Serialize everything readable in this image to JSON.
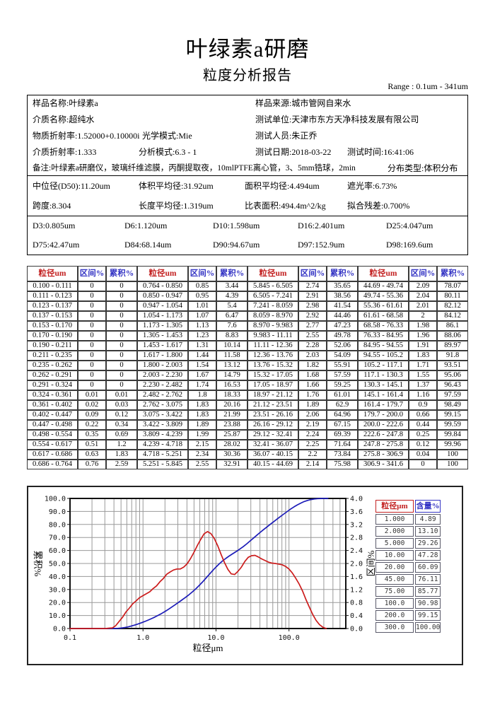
{
  "page": {
    "title": "叶绿素a研磨",
    "subtitle": "粒度分析报告",
    "range_note": "Range : 0.1um - 341um",
    "accent_colors": {
      "red": "#c32222",
      "blue": "#3434c4"
    }
  },
  "info": {
    "sample_name": "样品名称:叶绿素a",
    "sample_source": "样品来源:城市管网自来水",
    "medium_name": "介质名称:超纯水",
    "test_org": "测试单位:天津市东方天净科技发展有限公司",
    "material_ri": "物质折射率:1.52000+0.10000i",
    "optical_model": "光学模式:Mie",
    "tester": "测试人员:朱正乔",
    "medium_ri": "介质折射率:1.333",
    "analysis_mode": "分析模式:6.3 - 1",
    "test_date": "测试日期:2018-03-22",
    "test_time": "测试时间:16:41:06",
    "remark": "备注:叶绿素a研磨仪，玻璃纤维滤膜，丙酮提取夜，10mlPTFE离心管，3、5mm锆球，2min",
    "dist_type": "分布类型:体积分布"
  },
  "stats": {
    "d50": "中位径(D50):11.20um",
    "vol_mean": "体积平均径:31.92um",
    "area_mean": "面积平均径:4.494um",
    "obscuration": "遮光率:6.73%",
    "span": "跨度:8.304",
    "length_mean": "长度平均径:1.319um",
    "ssa": "比表面积:494.4m^2/kg",
    "residual": "拟合残差:0.700%"
  },
  "dvalues": {
    "row1": [
      "D3:0.805um",
      "D6:1.120um",
      "D10:1.598um",
      "D16:2.401um",
      "D25:4.047um"
    ],
    "row2": [
      "D75:42.47um",
      "D84:68.14um",
      "D90:94.67um",
      "D97:152.9um",
      "D98:169.6um"
    ]
  },
  "table": {
    "headers": [
      "粒径um",
      "区间%",
      "累积%"
    ],
    "groups": [
      [
        [
          "0.100 - 0.111",
          "0",
          "0"
        ],
        [
          "0.111 - 0.123",
          "0",
          "0"
        ],
        [
          "0.123 - 0.137",
          "0",
          "0"
        ],
        [
          "0.137 - 0.153",
          "0",
          "0"
        ],
        [
          "0.153 - 0.170",
          "0",
          "0"
        ],
        [
          "0.170 - 0.190",
          "0",
          "0"
        ],
        [
          "0.190 - 0.211",
          "0",
          "0"
        ],
        [
          "0.211 - 0.235",
          "0",
          "0"
        ],
        [
          "0.235 - 0.262",
          "0",
          "0"
        ],
        [
          "0.262 - 0.291",
          "0",
          "0"
        ],
        [
          "0.291 - 0.324",
          "0",
          "0"
        ],
        [
          "0.324 - 0.361",
          "0.01",
          "0.01"
        ],
        [
          "0.361 - 0.402",
          "0.02",
          "0.03"
        ],
        [
          "0.402 - 0.447",
          "0.09",
          "0.12"
        ],
        [
          "0.447 - 0.498",
          "0.22",
          "0.34"
        ],
        [
          "0.498 - 0.554",
          "0.35",
          "0.69"
        ],
        [
          "0.554 - 0.617",
          "0.51",
          "1.2"
        ],
        [
          "0.617 - 0.686",
          "0.63",
          "1.83"
        ],
        [
          "0.686 - 0.764",
          "0.76",
          "2.59"
        ]
      ],
      [
        [
          "0.764 - 0.850",
          "0.85",
          "3.44"
        ],
        [
          "0.850 - 0.947",
          "0.95",
          "4.39"
        ],
        [
          "0.947 - 1.054",
          "1.01",
          "5.4"
        ],
        [
          "1.054 - 1.173",
          "1.07",
          "6.47"
        ],
        [
          "1.173 - 1.305",
          "1.13",
          "7.6"
        ],
        [
          "1.305 - 1.453",
          "1.23",
          "8.83"
        ],
        [
          "1.453 - 1.617",
          "1.31",
          "10.14"
        ],
        [
          "1.617 - 1.800",
          "1.44",
          "11.58"
        ],
        [
          "1.800 - 2.003",
          "1.54",
          "13.12"
        ],
        [
          "2.003 - 2.230",
          "1.67",
          "14.79"
        ],
        [
          "2.230 - 2.482",
          "1.74",
          "16.53"
        ],
        [
          "2.482 - 2.762",
          "1.8",
          "18.33"
        ],
        [
          "2.762 - 3.075",
          "1.83",
          "20.16"
        ],
        [
          "3.075 - 3.422",
          "1.83",
          "21.99"
        ],
        [
          "3.422 - 3.809",
          "1.89",
          "23.88"
        ],
        [
          "3.809 - 4.239",
          "1.99",
          "25.87"
        ],
        [
          "4.239 - 4.718",
          "2.15",
          "28.02"
        ],
        [
          "4.718 - 5.251",
          "2.34",
          "30.36"
        ],
        [
          "5.251 - 5.845",
          "2.55",
          "32.91"
        ]
      ],
      [
        [
          "5.845 - 6.505",
          "2.74",
          "35.65"
        ],
        [
          "6.505 - 7.241",
          "2.91",
          "38.56"
        ],
        [
          "7.241 - 8.059",
          "2.98",
          "41.54"
        ],
        [
          "8.059 - 8.970",
          "2.92",
          "44.46"
        ],
        [
          "8.970 - 9.983",
          "2.77",
          "47.23"
        ],
        [
          "9.983 - 11.11",
          "2.55",
          "49.78"
        ],
        [
          "11.11 - 12.36",
          "2.28",
          "52.06"
        ],
        [
          "12.36 - 13.76",
          "2.03",
          "54.09"
        ],
        [
          "13.76 - 15.32",
          "1.82",
          "55.91"
        ],
        [
          "15.32 - 17.05",
          "1.68",
          "57.59"
        ],
        [
          "17.05 - 18.97",
          "1.66",
          "59.25"
        ],
        [
          "18.97 - 21.12",
          "1.76",
          "61.01"
        ],
        [
          "21.12 - 23.51",
          "1.89",
          "62.9"
        ],
        [
          "23.51 - 26.16",
          "2.06",
          "64.96"
        ],
        [
          "26.16 - 29.12",
          "2.19",
          "67.15"
        ],
        [
          "29.12 - 32.41",
          "2.24",
          "69.39"
        ],
        [
          "32.41 - 36.07",
          "2.25",
          "71.64"
        ],
        [
          "36.07 - 40.15",
          "2.2",
          "73.84"
        ],
        [
          "40.15 - 44.69",
          "2.14",
          "75.98"
        ]
      ],
      [
        [
          "44.69 - 49.74",
          "2.09",
          "78.07"
        ],
        [
          "49.74 - 55.36",
          "2.04",
          "80.11"
        ],
        [
          "55.36 - 61.61",
          "2.01",
          "82.12"
        ],
        [
          "61.61 - 68.58",
          "2",
          "84.12"
        ],
        [
          "68.58 - 76.33",
          "1.98",
          "86.1"
        ],
        [
          "76.33 - 84.95",
          "1.96",
          "88.06"
        ],
        [
          "84.95 - 94.55",
          "1.91",
          "89.97"
        ],
        [
          "94.55 - 105.2",
          "1.83",
          "91.8"
        ],
        [
          "105.2 - 117.1",
          "1.71",
          "93.51"
        ],
        [
          "117.1 - 130.3",
          "1.55",
          "95.06"
        ],
        [
          "130.3 - 145.1",
          "1.37",
          "96.43"
        ],
        [
          "145.1 - 161.4",
          "1.16",
          "97.59"
        ],
        [
          "161.4 - 179.7",
          "0.9",
          "98.49"
        ],
        [
          "179.7 - 200.0",
          "0.66",
          "99.15"
        ],
        [
          "200.0 - 222.6",
          "0.44",
          "99.59"
        ],
        [
          "222.6 - 247.8",
          "0.25",
          "99.84"
        ],
        [
          "247.8 - 275.8",
          "0.12",
          "99.96"
        ],
        [
          "275.8 - 306.9",
          "0.04",
          "100"
        ],
        [
          "306.9 - 341.6",
          "0",
          "100"
        ]
      ]
    ]
  },
  "side_table": {
    "headers": [
      "粒径μm",
      "含量%"
    ],
    "rows": [
      [
        "1.000",
        "4.89"
      ],
      [
        "2.000",
        "13.10"
      ],
      [
        "5.000",
        "29.26"
      ],
      [
        "10.00",
        "47.28"
      ],
      [
        "20.00",
        "60.09"
      ],
      [
        "45.00",
        "76.11"
      ],
      [
        "75.00",
        "85.77"
      ],
      [
        "100.0",
        "90.98"
      ],
      [
        "200.0",
        "99.15"
      ],
      [
        "300.0",
        "100.00"
      ]
    ]
  },
  "chart_data": {
    "type": "line",
    "x_axis": {
      "label": "粒径μm",
      "scale": "log",
      "plot_min": 0.1,
      "plot_max": 600,
      "tick_values": [
        0.1,
        1,
        10,
        100
      ],
      "tick_labels": [
        "0.1",
        "1.0",
        "10.0",
        "100.0"
      ]
    },
    "y_left_axis": {
      "label": "累积%",
      "min": 0,
      "max": 100,
      "step": 10
    },
    "y_right_axis": {
      "label": "区间%",
      "min": 0,
      "max": 4.0,
      "step": 0.4
    },
    "grid": true,
    "colors": {
      "cumulative": "#1c1cb8",
      "interval": "#cc1c1c"
    },
    "bin_edges": [
      0.1,
      0.111,
      0.123,
      0.137,
      0.153,
      0.17,
      0.19,
      0.211,
      0.235,
      0.262,
      0.291,
      0.324,
      0.361,
      0.402,
      0.447,
      0.498,
      0.554,
      0.617,
      0.686,
      0.764,
      0.85,
      0.947,
      1.054,
      1.173,
      1.305,
      1.453,
      1.617,
      1.8,
      2.003,
      2.23,
      2.482,
      2.762,
      3.075,
      3.422,
      3.809,
      4.239,
      4.718,
      5.251,
      5.845,
      6.505,
      7.241,
      8.059,
      8.97,
      9.983,
      11.11,
      12.36,
      13.76,
      15.32,
      17.05,
      18.97,
      21.12,
      23.51,
      26.16,
      29.12,
      32.41,
      36.07,
      40.15,
      44.69,
      49.74,
      55.36,
      61.61,
      68.58,
      76.33,
      84.95,
      94.55,
      105.2,
      117.1,
      130.3,
      145.1,
      161.4,
      179.7,
      200.0,
      222.6,
      247.8,
      275.8,
      306.9,
      341.6
    ],
    "series": [
      {
        "name": "累积%",
        "axis": "left",
        "x_mode": "bin_upper",
        "values": [
          0,
          0,
          0,
          0,
          0,
          0,
          0,
          0,
          0,
          0,
          0,
          0.01,
          0.03,
          0.12,
          0.34,
          0.69,
          1.2,
          1.83,
          2.59,
          3.44,
          4.39,
          5.4,
          6.47,
          7.6,
          8.83,
          10.14,
          11.58,
          13.12,
          14.79,
          16.53,
          18.33,
          20.16,
          21.99,
          23.88,
          25.87,
          28.02,
          30.36,
          32.91,
          35.65,
          38.56,
          41.54,
          44.46,
          47.23,
          49.78,
          52.06,
          54.09,
          55.91,
          57.59,
          59.25,
          61.01,
          62.9,
          64.96,
          67.15,
          69.39,
          71.64,
          73.84,
          75.98,
          78.07,
          80.11,
          82.12,
          84.12,
          86.1,
          88.06,
          89.97,
          91.8,
          93.51,
          95.06,
          96.43,
          97.59,
          98.49,
          99.15,
          99.59,
          99.84,
          99.96,
          100,
          100
        ]
      },
      {
        "name": "区间%",
        "axis": "right",
        "x_mode": "bin_mid",
        "values": [
          0,
          0,
          0,
          0,
          0,
          0,
          0,
          0,
          0,
          0,
          0,
          0.01,
          0.02,
          0.09,
          0.22,
          0.35,
          0.51,
          0.63,
          0.76,
          0.85,
          0.95,
          1.01,
          1.07,
          1.13,
          1.23,
          1.31,
          1.44,
          1.54,
          1.67,
          1.74,
          1.8,
          1.83,
          1.83,
          1.89,
          1.99,
          2.15,
          2.34,
          2.55,
          2.74,
          2.91,
          2.98,
          2.92,
          2.77,
          2.55,
          2.28,
          2.03,
          1.82,
          1.68,
          1.66,
          1.76,
          1.89,
          2.06,
          2.19,
          2.24,
          2.25,
          2.2,
          2.14,
          2.09,
          2.04,
          2.01,
          2,
          1.98,
          1.96,
          1.91,
          1.83,
          1.71,
          1.55,
          1.37,
          1.16,
          0.9,
          0.66,
          0.44,
          0.25,
          0.12,
          0.04,
          0
        ]
      }
    ]
  }
}
